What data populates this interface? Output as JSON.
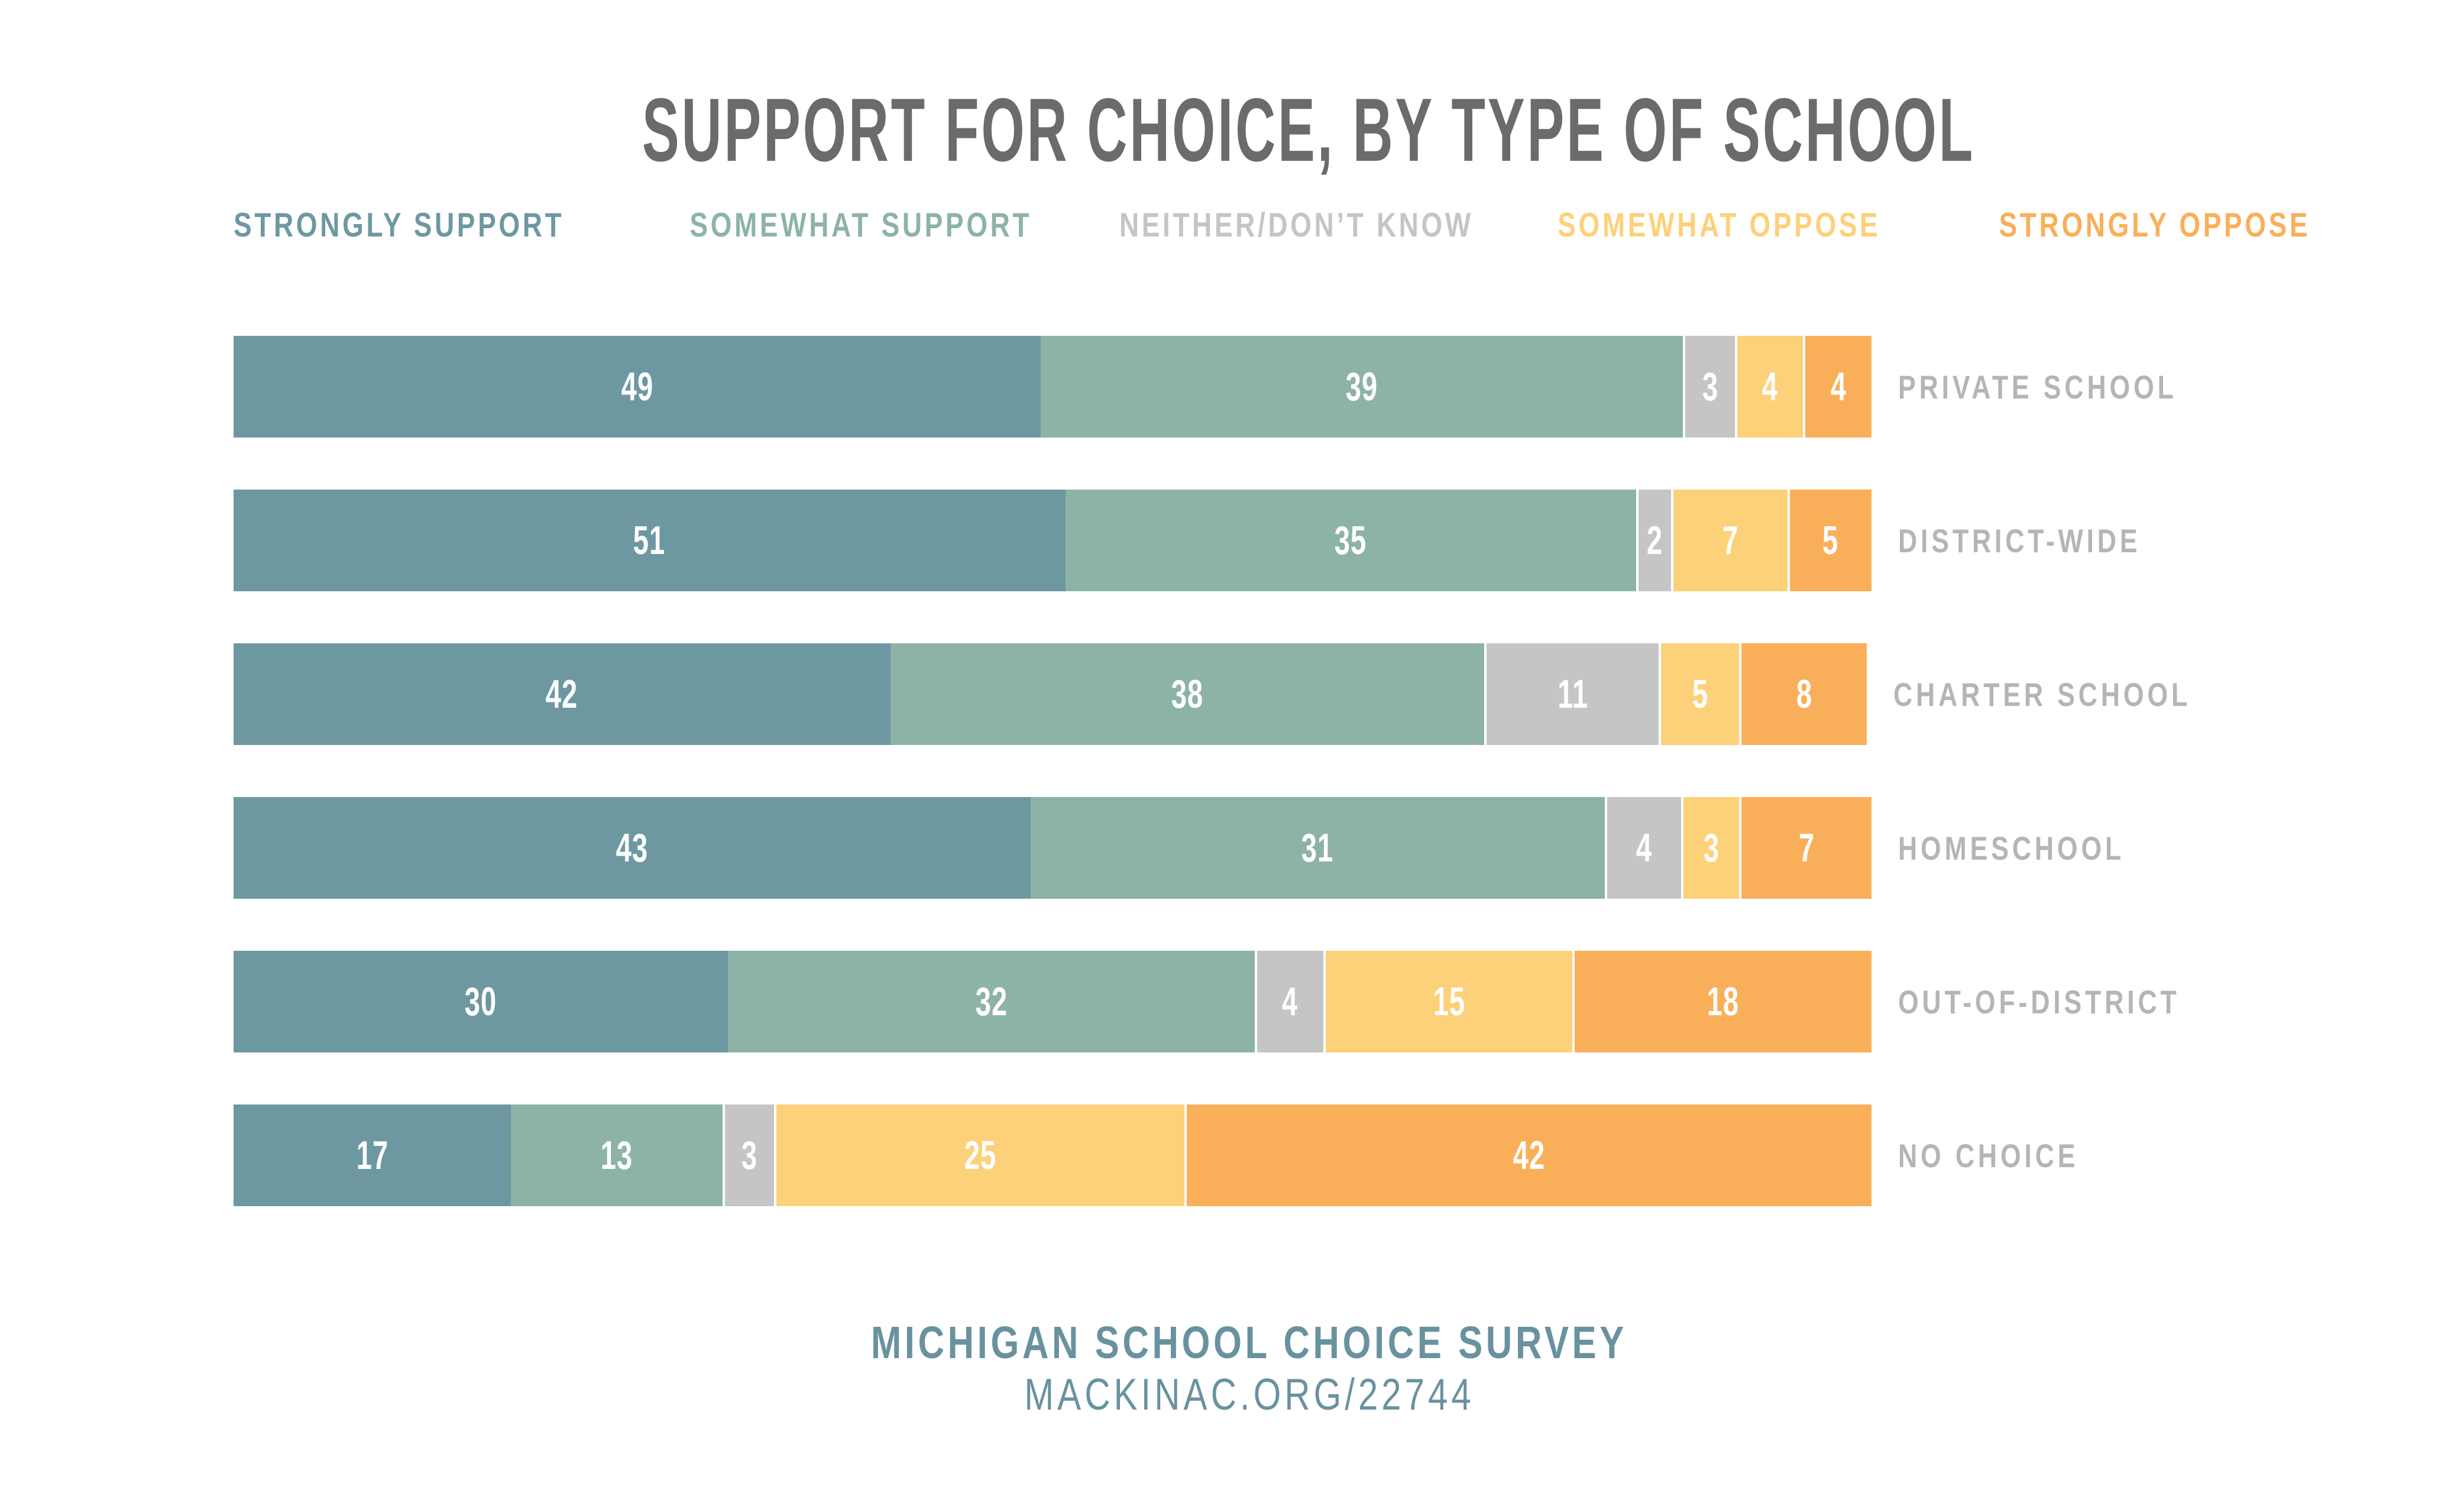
{
  "title": "SUPPORT FOR CHOICE, BY TYPE OF SCHOOL",
  "chart_data": {
    "type": "bar",
    "stacked": true,
    "orientation": "horizontal",
    "unit": "percent",
    "title": "SUPPORT FOR CHOICE, BY TYPE OF SCHOOL",
    "xlabel": "",
    "ylabel": "",
    "legend_position": "top",
    "value_labels_shown": true,
    "grid": false,
    "categories": [
      "PRIVATE SCHOOL",
      "DISTRICT-WIDE",
      "CHARTER SCHOOL",
      "HOMESCHOOL",
      "OUT-OF-DISTRICT",
      "NO CHOICE"
    ],
    "series": [
      {
        "name": "STRONGLY SUPPORT",
        "color": "#6e98a1",
        "values": [
          49,
          51,
          42,
          43,
          30,
          17
        ]
      },
      {
        "name": "SOMEWHAT SUPPORT",
        "color": "#8db3a6",
        "values": [
          39,
          35,
          38,
          31,
          32,
          13
        ]
      },
      {
        "name": "NEITHER/DON’T KNOW",
        "color": "#c5c5c6",
        "values": [
          3,
          2,
          11,
          4,
          4,
          3
        ]
      },
      {
        "name": "SOMEWHAT OPPOSE",
        "color": "#fdd17a",
        "values": [
          4,
          7,
          5,
          3,
          15,
          25
        ]
      },
      {
        "name": "STRONGLY OPPOSE",
        "color": "#f9af5a",
        "values": [
          4,
          5,
          8,
          7,
          18,
          42
        ]
      }
    ]
  },
  "footer": {
    "line1": "MICHIGAN SCHOOL CHOICE SURVEY",
    "line2": "MACKINAC.ORG/22744"
  },
  "colors": {
    "background": "#ffffff",
    "title_text": "#6a6b6d",
    "row_label_text": "#b4b5b7",
    "value_text": "#ffffff",
    "segment_separator": "#ffffff",
    "footer_text": "#69929f"
  }
}
